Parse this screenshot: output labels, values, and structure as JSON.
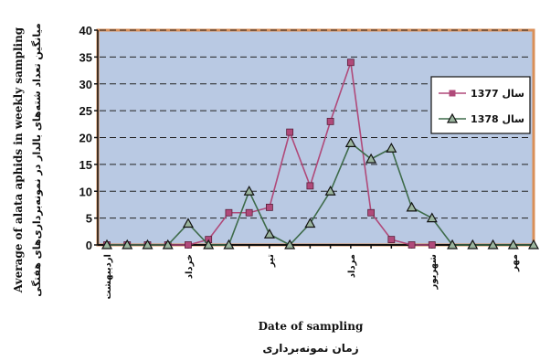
{
  "chart_data": {
    "type": "line",
    "ylabel_en": "Average of alata aphids in weekly sampling",
    "ylabel_fa": "میانگین تعداد شته‌های بالدار در نمونه‌برداری‌های هفتگی",
    "xlabel_en": "Date of sampling",
    "xlabel_fa": "زمان نمونه‌برداری",
    "ylim": [
      0,
      40
    ],
    "yticks": [
      0,
      5,
      10,
      15,
      20,
      25,
      30,
      35,
      40
    ],
    "x_count": 22,
    "month_ticks": [
      {
        "label": "اردیبهشت",
        "index": 0
      },
      {
        "label": "خرداد",
        "index": 4
      },
      {
        "label": "تیر",
        "index": 8
      },
      {
        "label": "مرداد",
        "index": 12
      },
      {
        "label": "شهریور",
        "index": 16
      },
      {
        "label": "مهر",
        "index": 20
      }
    ],
    "grid": true,
    "legend_position": "right",
    "series": [
      {
        "name": "سال 1377",
        "color": "#b04a7a",
        "marker": "square",
        "values": [
          0,
          0,
          0,
          0,
          0,
          1,
          6,
          6,
          7,
          21,
          11,
          23,
          34,
          6,
          1,
          0,
          0,
          null,
          null,
          null,
          null,
          null
        ]
      },
      {
        "name": "سال 1378",
        "color": "#3e6b4a",
        "marker": "triangle",
        "values": [
          0,
          0,
          0,
          0,
          4,
          0,
          0,
          10,
          2,
          0,
          4,
          10,
          19,
          16,
          18,
          7,
          5,
          0,
          0,
          0,
          0,
          0
        ]
      }
    ],
    "colors": {
      "plot_background": "#b9c9e3",
      "plot_border": "#d98f58",
      "grid": "#222222"
    }
  }
}
